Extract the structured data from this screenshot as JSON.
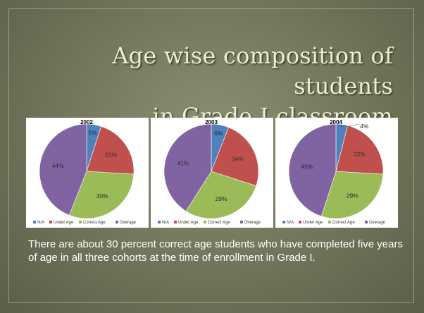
{
  "slide": {
    "title_line1": "Age wise composition of students",
    "title_line2": "in Grade I classroom",
    "caption": "There are about 30 percent correct age students who have completed five years of age in all three cohorts at the time of enrollment in Grade I."
  },
  "colors": {
    "NA": "#4f81bd",
    "Under Age": "#c0504d",
    "Correct Age": "#9bbb59",
    "Overage": "#8064a2"
  },
  "chart_data": [
    {
      "type": "pie",
      "title": "2002",
      "labels": [
        "NA",
        "Under Age",
        "Correct Age",
        "Overage"
      ],
      "values": [
        5,
        21,
        30,
        44
      ],
      "data_labels": [
        "5%",
        "21%",
        "30%",
        "44%"
      ],
      "legend": "bottom"
    },
    {
      "type": "pie",
      "title": "2003",
      "labels": [
        "NA",
        "Under Age",
        "Correct Age",
        "Overage"
      ],
      "values": [
        6,
        24,
        29,
        41
      ],
      "data_labels": [
        "6%",
        "24%",
        "29%",
        "41%"
      ],
      "legend": "bottom"
    },
    {
      "type": "pie",
      "title": "2004",
      "labels": [
        "NA",
        "Under Age",
        "Correct Age",
        "Overage"
      ],
      "values": [
        4,
        22,
        29,
        45
      ],
      "data_labels": [
        "4%",
        "22%",
        "29%",
        "45%"
      ],
      "legend": "bottom"
    }
  ]
}
